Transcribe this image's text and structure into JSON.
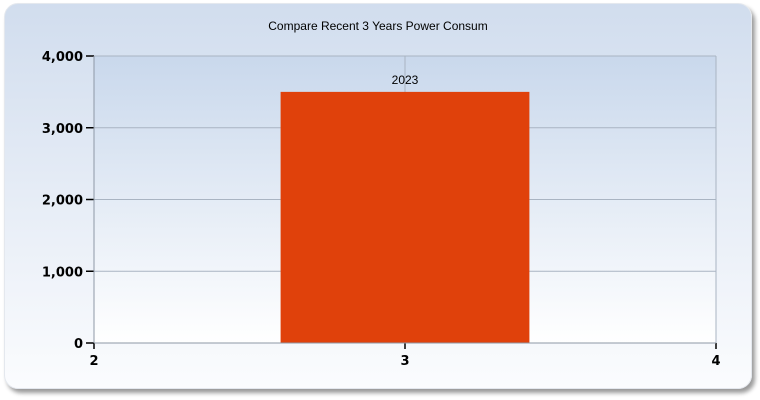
{
  "chart_data": {
    "type": "bar",
    "title": "Compare Recent 3 Years Power Consum",
    "xlabel": "",
    "ylabel": "",
    "x": [
      3
    ],
    "values": [
      3500
    ],
    "data_labels": [
      "2023"
    ],
    "bar_width": 0.8,
    "xlim": [
      2,
      4
    ],
    "ylim": [
      0,
      4000
    ],
    "xticks": [
      "2",
      "3",
      "4"
    ],
    "yticks": [
      "0",
      "1,000",
      "2,000",
      "3,000",
      "4,000"
    ],
    "grid": true,
    "colors": {
      "bar": "#e0410b",
      "grid": "#a9b4c2",
      "plot_background_top": "#c9d8ec"
    }
  }
}
